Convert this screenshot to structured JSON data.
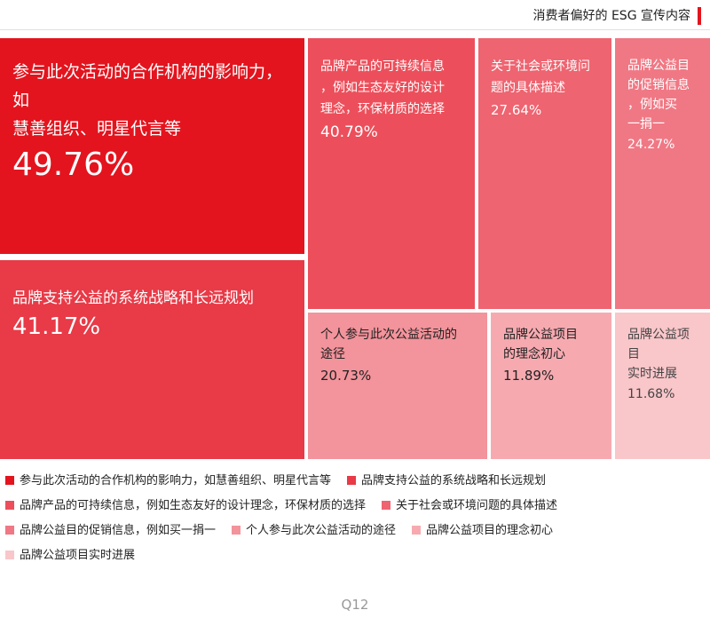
{
  "header": {
    "title": "消费者偏好的 ESG 宣传内容"
  },
  "footer": {
    "label": "Q12"
  },
  "chart_data": {
    "type": "treemap",
    "title": "消费者偏好的 ESG 宣传内容",
    "unit": "%",
    "items": [
      {
        "label": "参与此次活动的合作机构的影响力，如慧善组织、明星代言等",
        "value": 49.76,
        "display": "49.76%",
        "color": "#e3141e"
      },
      {
        "label": "品牌支持公益的系统战略和长远规划",
        "value": 41.17,
        "display": "41.17%",
        "color": "#e83a47"
      },
      {
        "label": "品牌产品的可持续信息，例如生态友好的设计理念，环保材质的选择",
        "value": 40.79,
        "display": "40.79%",
        "color": "#ec4f5b"
      },
      {
        "label": "关于社会或环境问题的具体描述",
        "value": 27.64,
        "display": "27.64%",
        "color": "#ee6470"
      },
      {
        "label": "品牌公益目的促销信息，例如买一捐一",
        "value": 24.27,
        "display": "24.27%",
        "color": "#f07884"
      },
      {
        "label": "个人参与此次公益活动的途径",
        "value": 20.73,
        "display": "20.73%",
        "color": "#f3939b"
      },
      {
        "label": "品牌公益项目的理念初心",
        "value": 11.89,
        "display": "11.89%",
        "color": "#f6aab0"
      },
      {
        "label": "品牌公益项目实时进展",
        "value": 11.68,
        "display": "11.68%",
        "color": "#f9c6ca"
      }
    ],
    "legend": [
      [
        "参与此次活动的合作机构的影响力，如慧善组织、明星代言等",
        "品牌支持公益的系统战略和长远规划"
      ],
      [
        "品牌产品的可持续信息，例如生态友好的设计理念，环保材质的选择",
        "关于社会或环境问题的具体描述"
      ],
      [
        "品牌公益目的促销信息，例如买一捐一",
        "个人参与此次公益活动的途径",
        "品牌公益项目的理念初心"
      ],
      [
        "品牌公益项目实时进展"
      ]
    ]
  }
}
